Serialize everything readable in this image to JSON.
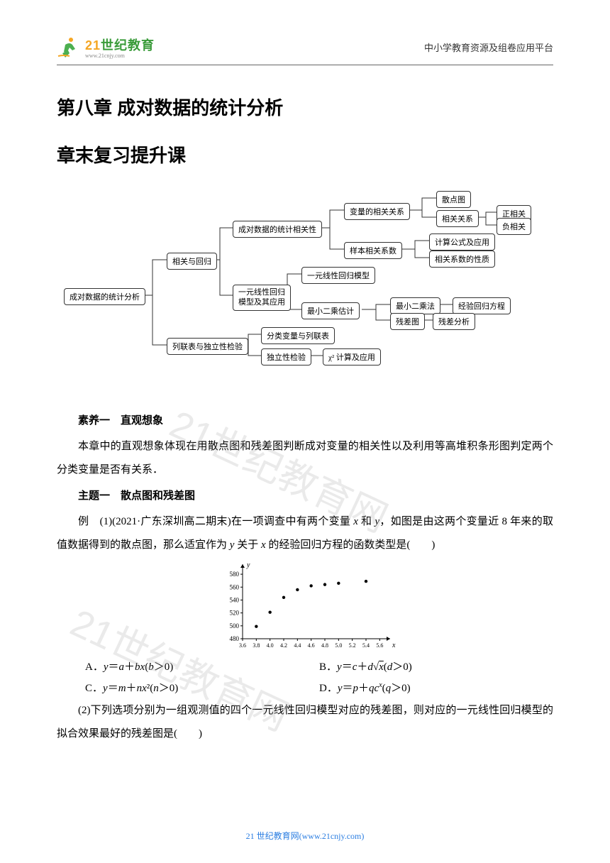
{
  "header": {
    "logo_cn": "世纪教育",
    "logo_num": "21",
    "logo_url": "www.21cnjy.com",
    "right_text": "中小学教育资源及组卷应用平台"
  },
  "chapter_title": "第八章 成对数据的统计分析",
  "section_title": "章末复习提升课",
  "diagram": {
    "root": "成对数据的统计分析",
    "b1": "相关与回归",
    "b2": "列联表与独立性检验",
    "c1": "成对数据的统计相关性",
    "c2": "一元线性回归\n模型及其应用",
    "c3": "分类变量与列联表",
    "c4": "独立性检验",
    "d1": "变量的相关关系",
    "d2": "样本相关系数",
    "d3": "一元线性回归模型",
    "d4": "最小二乘估计",
    "d5": "χ² 计算及应用",
    "e1": "散点图",
    "e2": "相关关系",
    "e3": "计算公式及应用",
    "e4": "相关系数的性质",
    "e5": "最小二乘法",
    "e6": "残差图",
    "f1": "正相关",
    "f2": "负相关",
    "f3": "经验回归方程",
    "f4": "残差分析"
  },
  "content": {
    "suyang_label": "素养一",
    "suyang_name": "直观想象",
    "para1": "本章中的直观想象体现在用散点图和残差图判断成对变量的相关性以及利用等高堆积条形图判定两个分类变量是否有关系．",
    "zhuti_label": "主题一",
    "zhuti_name": "散点图和残差图",
    "example_prefix": "例　(1)(2021·广东深圳高二期末)在一项调查中有两个变量 ",
    "example_mid": " 和 ",
    "example_after": "，如图是由这两个变量近 8 年来的取值数据得到的散点图，那么适宜作为 ",
    "example_after2": " 关于 ",
    "example_after3": " 的经验回归方程的函数类型是(　　)",
    "var_x": "x",
    "var_y": "y"
  },
  "scatter": {
    "y_ticks": [
      480,
      500,
      520,
      540,
      560,
      580
    ],
    "x_ticks": [
      "3.6",
      "3.8",
      "4.0",
      "4.2",
      "4.4",
      "4.6",
      "4.8",
      "5.0",
      "5.2",
      "5.4",
      "5.6"
    ],
    "points": [
      {
        "x": 3.8,
        "y": 499
      },
      {
        "x": 4.0,
        "y": 521
      },
      {
        "x": 4.2,
        "y": 544
      },
      {
        "x": 4.4,
        "y": 556
      },
      {
        "x": 4.6,
        "y": 562
      },
      {
        "x": 4.8,
        "y": 564
      },
      {
        "x": 5.0,
        "y": 566
      },
      {
        "x": 5.4,
        "y": 569
      }
    ],
    "y_label": "y",
    "x_label": "x",
    "x_min": 3.6,
    "x_max": 5.7,
    "y_min": 480,
    "y_max": 590
  },
  "options": {
    "a": "A．y＝a＋bx(b＞0)",
    "b": "B．y＝c＋d√x(d＞0)",
    "c": "C．y＝m＋nx²(n＞0)",
    "d": "D．y＝p＋qcˣ(q＞0)"
  },
  "q2": "(2)下列选项分别为一组观测值的四个一元线性回归模型对应的残差图，则对应的一元线性回归模型的拟合效果最好的残差图是(　　)",
  "footer": "21 世纪教育网(www.21cnjy.com)",
  "watermark": "21世纪教育网"
}
